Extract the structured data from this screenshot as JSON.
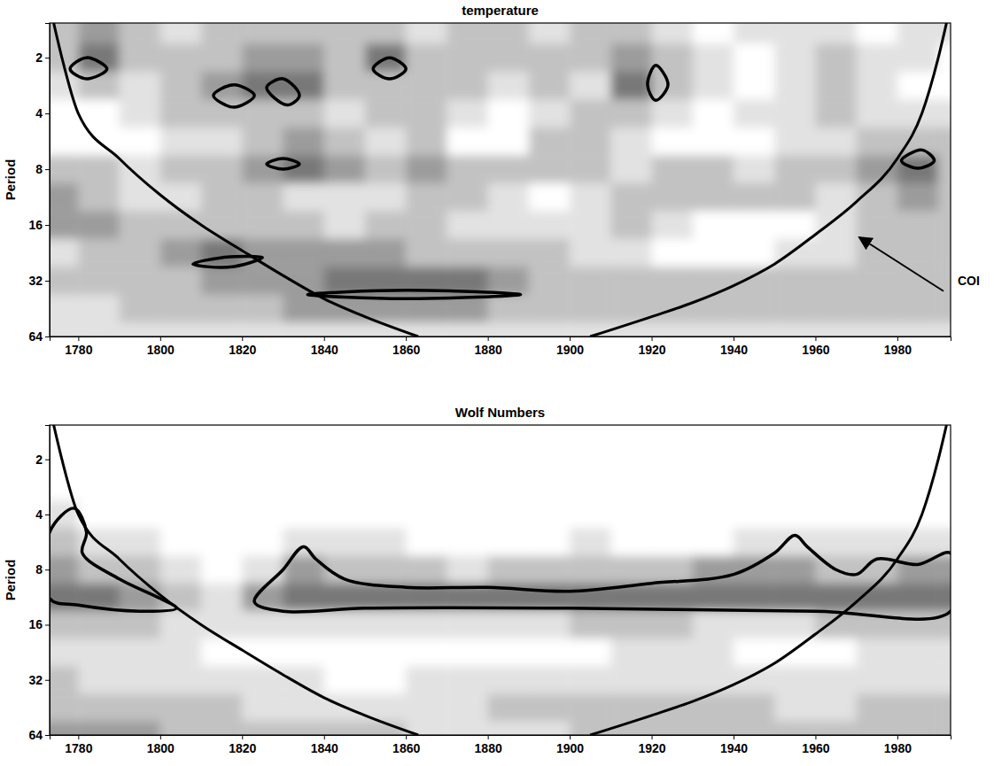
{
  "chart_data": [
    {
      "type": "heatmap",
      "title": "temperature",
      "y_label": "Period",
      "log": "y",
      "xlim": [
        1773,
        1993
      ],
      "xticks": [
        1780,
        1800,
        1820,
        1840,
        1860,
        1880,
        1900,
        1920,
        1940,
        1960,
        1980
      ],
      "ylim": [
        1.3,
        64
      ],
      "yticks": [
        2,
        4,
        8,
        16,
        32,
        64
      ],
      "x": [
        1775,
        1785,
        1795,
        1805,
        1815,
        1825,
        1835,
        1845,
        1855,
        1865,
        1875,
        1885,
        1895,
        1905,
        1915,
        1925,
        1935,
        1945,
        1955,
        1965,
        1975,
        1985,
        1995
      ],
      "y": [
        1.41,
        2,
        2.83,
        4,
        5.66,
        8,
        11.3,
        16,
        22.6,
        32,
        45.3,
        64
      ],
      "values": [
        [
          2,
          3,
          2,
          1,
          2,
          2,
          2,
          2,
          2,
          1,
          2,
          2,
          1,
          2,
          2,
          1,
          0,
          1,
          1,
          1,
          0,
          1,
          1
        ],
        [
          2,
          4,
          2,
          2,
          2,
          3,
          3,
          2,
          4,
          2,
          2,
          2,
          2,
          2,
          3,
          2,
          1,
          0,
          1,
          2,
          1,
          1,
          0
        ],
        [
          1,
          2,
          1,
          2,
          3,
          4,
          4,
          2,
          2,
          2,
          2,
          1,
          2,
          1,
          4,
          2,
          1,
          0,
          1,
          2,
          1,
          0,
          0
        ],
        [
          0,
          0,
          1,
          2,
          2,
          2,
          2,
          1,
          2,
          2,
          1,
          0,
          1,
          2,
          2,
          1,
          0,
          1,
          1,
          2,
          1,
          1,
          1
        ],
        [
          0,
          0,
          0,
          1,
          1,
          2,
          3,
          2,
          1,
          2,
          0,
          0,
          2,
          2,
          1,
          0,
          0,
          0,
          1,
          1,
          2,
          2,
          2
        ],
        [
          2,
          2,
          1,
          2,
          2,
          3,
          4,
          3,
          2,
          3,
          2,
          2,
          2,
          2,
          1,
          2,
          2,
          1,
          2,
          2,
          3,
          4,
          2
        ],
        [
          3,
          2,
          1,
          1,
          2,
          2,
          1,
          1,
          1,
          2,
          2,
          1,
          0,
          1,
          2,
          2,
          2,
          2,
          2,
          1,
          2,
          3,
          2
        ],
        [
          3,
          3,
          2,
          2,
          2,
          2,
          2,
          1,
          2,
          2,
          1,
          1,
          1,
          1,
          2,
          1,
          0,
          0,
          0,
          1,
          2,
          2,
          2
        ],
        [
          1,
          2,
          2,
          3,
          4,
          3,
          3,
          3,
          3,
          2,
          2,
          2,
          2,
          1,
          1,
          0,
          0,
          0,
          1,
          1,
          2,
          2,
          2
        ],
        [
          2,
          2,
          2,
          2,
          3,
          3,
          3,
          4,
          4,
          4,
          4,
          3,
          2,
          2,
          2,
          2,
          2,
          2,
          2,
          2,
          2,
          2,
          2
        ],
        [
          1,
          1,
          2,
          2,
          2,
          2,
          3,
          3,
          3,
          3,
          3,
          2,
          2,
          2,
          2,
          2,
          2,
          2,
          2,
          2,
          2,
          2,
          2
        ],
        [
          1,
          1,
          1,
          1,
          1,
          1,
          1,
          1,
          1,
          1,
          1,
          1,
          1,
          1,
          1,
          1,
          1,
          1,
          1,
          1,
          1,
          1,
          1
        ]
      ],
      "coi": {
        "x": [
          1774,
          1776,
          1780,
          1790,
          1800,
          1810,
          1820,
          1830,
          1840,
          1850,
          1863,
          null,
          1905,
          1920,
          1930,
          1940,
          1950,
          1960,
          1970,
          1980,
          1986,
          1990,
          1992
        ],
        "y": [
          1.3,
          2,
          4,
          7,
          11,
          16,
          22,
          30,
          40,
          50,
          64,
          null,
          64,
          50,
          42,
          34,
          26,
          18,
          12,
          7,
          4,
          2,
          1.3
        ]
      },
      "significant": [
        {
          "x": [
            1778,
            1782,
            1787,
            1782
          ],
          "y": [
            2.3,
            2.0,
            2.3,
            2.6
          ]
        },
        {
          "x": [
            1813,
            1818,
            1823,
            1818
          ],
          "y": [
            3.2,
            2.8,
            3.2,
            3.7
          ]
        },
        {
          "x": [
            1826,
            1830,
            1834,
            1831
          ],
          "y": [
            2.9,
            2.6,
            3.2,
            3.6
          ]
        },
        {
          "x": [
            1852,
            1856,
            1860,
            1856
          ],
          "y": [
            2.3,
            2.0,
            2.3,
            2.6
          ]
        },
        {
          "x": [
            1919,
            1921,
            1924,
            1921
          ],
          "y": [
            2.8,
            2.2,
            2.8,
            3.4
          ]
        },
        {
          "x": [
            1826,
            1830,
            1834,
            1830
          ],
          "y": [
            7.5,
            7.0,
            7.5,
            8.0
          ]
        },
        {
          "x": [
            1981,
            1986,
            1989,
            1985
          ],
          "y": [
            7.2,
            6.3,
            7.2,
            7.9
          ]
        },
        {
          "x": [
            1808,
            1815,
            1825,
            1817
          ],
          "y": [
            26,
            24,
            24,
            27
          ]
        },
        {
          "x": [
            1836,
            1860,
            1888,
            1860
          ],
          "y": [
            38,
            36,
            38,
            40
          ]
        }
      ],
      "annotations": [
        {
          "text": "COI",
          "x": 1970,
          "y": 18
        }
      ]
    },
    {
      "type": "heatmap",
      "title": "Wolf Numbers",
      "y_label": "Period",
      "log": "y",
      "xlim": [
        1773,
        1993
      ],
      "xticks": [
        1780,
        1800,
        1820,
        1840,
        1860,
        1880,
        1900,
        1920,
        1940,
        1960,
        1980
      ],
      "ylim": [
        1.3,
        64
      ],
      "yticks": [
        2,
        4,
        8,
        16,
        32,
        64
      ],
      "x": [
        1775,
        1785,
        1795,
        1805,
        1815,
        1825,
        1835,
        1845,
        1855,
        1865,
        1875,
        1885,
        1895,
        1905,
        1915,
        1925,
        1935,
        1945,
        1955,
        1965,
        1975,
        1985,
        1995
      ],
      "y": [
        1.41,
        2,
        2.83,
        4,
        5.66,
        8,
        11.3,
        16,
        22.6,
        32,
        45.3,
        64
      ],
      "values": [
        [
          0,
          0,
          0,
          0,
          0,
          0,
          0,
          0,
          0,
          0,
          0,
          0,
          0,
          0,
          0,
          0,
          0,
          0,
          0,
          0,
          0,
          0,
          0
        ],
        [
          0,
          0,
          0,
          0,
          0,
          0,
          0,
          0,
          0,
          0,
          0,
          0,
          0,
          0,
          0,
          0,
          0,
          0,
          0,
          0,
          0,
          0,
          0
        ],
        [
          0,
          0,
          0,
          0,
          0,
          0,
          0,
          0,
          0,
          0,
          0,
          0,
          0,
          0,
          0,
          0,
          0,
          0,
          0,
          0,
          0,
          0,
          0
        ],
        [
          1,
          0,
          0,
          0,
          0,
          0,
          0,
          0,
          0,
          0,
          0,
          0,
          0,
          0,
          0,
          0,
          0,
          0,
          0,
          0,
          0,
          0,
          0
        ],
        [
          2,
          1,
          1,
          0,
          0,
          0,
          1,
          1,
          1,
          0,
          0,
          0,
          0,
          1,
          0,
          0,
          0,
          1,
          1,
          1,
          1,
          1,
          1
        ],
        [
          3,
          2,
          2,
          1,
          0,
          1,
          3,
          2,
          2,
          2,
          1,
          2,
          2,
          2,
          2,
          2,
          3,
          3,
          3,
          2,
          2,
          3,
          3
        ],
        [
          4,
          4,
          3,
          2,
          1,
          3,
          4,
          4,
          4,
          4,
          4,
          4,
          4,
          4,
          4,
          4,
          4,
          4,
          4,
          4,
          4,
          4,
          4
        ],
        [
          2,
          2,
          2,
          1,
          1,
          1,
          1,
          1,
          1,
          1,
          1,
          1,
          1,
          2,
          2,
          2,
          1,
          1,
          1,
          2,
          2,
          2,
          2
        ],
        [
          1,
          1,
          1,
          1,
          0,
          0,
          0,
          0,
          0,
          0,
          0,
          0,
          0,
          0,
          1,
          1,
          1,
          0,
          0,
          0,
          1,
          1,
          1
        ],
        [
          2,
          1,
          1,
          1,
          1,
          1,
          1,
          0,
          0,
          1,
          1,
          1,
          1,
          1,
          1,
          1,
          1,
          1,
          1,
          1,
          1,
          1,
          1
        ],
        [
          2,
          2,
          2,
          2,
          2,
          1,
          1,
          1,
          1,
          1,
          1,
          2,
          2,
          2,
          2,
          2,
          2,
          2,
          1,
          1,
          2,
          2,
          2
        ],
        [
          3,
          3,
          3,
          2,
          2,
          2,
          2,
          2,
          2,
          1,
          1,
          1,
          1,
          2,
          2,
          2,
          2,
          2,
          2,
          2,
          2,
          2,
          2
        ]
      ],
      "coi": {
        "x": [
          1774,
          1776,
          1780,
          1790,
          1800,
          1810,
          1820,
          1830,
          1840,
          1850,
          1863,
          null,
          1905,
          1920,
          1930,
          1940,
          1950,
          1960,
          1970,
          1980,
          1986,
          1990,
          1992
        ],
        "y": [
          1.3,
          2,
          4,
          7,
          11,
          16,
          22,
          30,
          40,
          50,
          64,
          null,
          64,
          50,
          42,
          34,
          26,
          18,
          12,
          7,
          4,
          2,
          1.3
        ]
      },
      "significant": [
        {
          "x": [
            1773,
            1779,
            1782,
            1781,
            1790,
            1800,
            1804,
            1795,
            1780,
            1773
          ],
          "y": [
            5,
            3.7,
            5,
            6.5,
            9,
            11.5,
            13,
            13.5,
            12.5,
            11.5
          ]
        },
        {
          "x": [
            1823,
            1830,
            1835,
            1838,
            1845,
            1860,
            1880,
            1900,
            1920,
            1940,
            1950,
            1955,
            1958,
            1965,
            1970,
            1975,
            1985,
            1993,
            1993,
            1960,
            1900,
            1850,
            1830
          ],
          "y": [
            12,
            8,
            6,
            7,
            9,
            10,
            10,
            10.5,
            9.5,
            8.5,
            6.5,
            5.2,
            6,
            8,
            8.5,
            7,
            7.5,
            6.5,
            13.5,
            13.5,
            13,
            13,
            13.5
          ]
        }
      ]
    }
  ]
}
